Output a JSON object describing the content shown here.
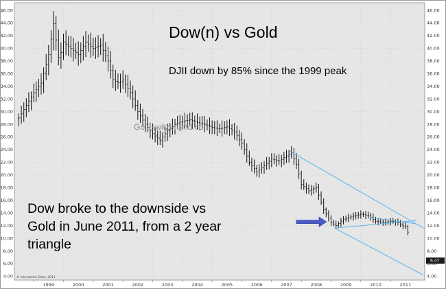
{
  "chart_data": {
    "type": "bar",
    "subtype": "ohlc-monthly",
    "title": "Dow(n) vs Gold",
    "subtitle": "DJII down by 85% since the 1999 peak",
    "watermark": "Goldswitzerland.com",
    "credit": "© Interactive Data, 2011",
    "annotation": [
      "Dow broke to the downside vs",
      "Gold in June 2011, from a 2 year",
      "triangle"
    ],
    "last_value_label": "6.47",
    "last_value": 6.47,
    "x_tick_labels": [
      "1999",
      "2000",
      "2001",
      "2002",
      "2003",
      "2004",
      "2005",
      "2006",
      "2007",
      "2008",
      "2009",
      "2010",
      "2011"
    ],
    "y_tick_values": [
      4,
      6,
      8,
      10,
      12,
      14,
      16,
      18,
      20,
      22,
      24,
      26,
      28,
      30,
      32,
      34,
      36,
      38,
      40,
      42,
      44,
      46
    ],
    "y_tick_labels": [
      "4.00",
      "6.00",
      "8.00",
      "10.00",
      "12.00",
      "14.00",
      "16.00",
      "18.00",
      "20.00",
      "22.00",
      "24.00",
      "26.00",
      "28.00",
      "30.00",
      "32.00",
      "34.00",
      "36.00",
      "38.00",
      "40.00",
      "42.00",
      "44.00",
      "46.00"
    ],
    "xlim": [
      1998.35,
      2012.15
    ],
    "ylim": [
      3.4,
      47.2
    ],
    "grid": true,
    "series": [
      {
        "anchors": [
          [
            1998.5,
            29.0
          ],
          [
            1998.75,
            31.0
          ],
          [
            1999.0,
            33.0
          ],
          [
            1999.25,
            34.5
          ],
          [
            1999.5,
            39.0
          ],
          [
            1999.67,
            44.0
          ],
          [
            1999.85,
            38.0
          ],
          [
            2000.0,
            41.0
          ],
          [
            2000.25,
            40.0
          ],
          [
            2000.5,
            39.0
          ],
          [
            2000.75,
            41.0
          ],
          [
            2001.0,
            40.0
          ],
          [
            2001.25,
            40.5
          ],
          [
            2001.5,
            38.0
          ],
          [
            2001.67,
            35.0
          ],
          [
            2001.85,
            34.5
          ],
          [
            2002.0,
            35.0
          ],
          [
            2002.25,
            33.0
          ],
          [
            2002.5,
            30.0
          ],
          [
            2002.75,
            28.0
          ],
          [
            2003.0,
            26.5
          ],
          [
            2003.25,
            25.5
          ],
          [
            2003.5,
            27.0
          ],
          [
            2003.75,
            28.0
          ],
          [
            2004.0,
            28.5
          ],
          [
            2004.25,
            28.7
          ],
          [
            2004.5,
            28.3
          ],
          [
            2004.75,
            28.0
          ],
          [
            2005.0,
            27.5
          ],
          [
            2005.25,
            27.3
          ],
          [
            2005.5,
            27.6
          ],
          [
            2005.75,
            26.8
          ],
          [
            2006.0,
            25.0
          ],
          [
            2006.25,
            22.0
          ],
          [
            2006.5,
            20.5
          ],
          [
            2006.75,
            21.5
          ],
          [
            2007.0,
            22.5
          ],
          [
            2007.25,
            22.2
          ],
          [
            2007.5,
            23.0
          ],
          [
            2007.67,
            23.5
          ],
          [
            2007.85,
            21.5
          ],
          [
            2008.0,
            18.5
          ],
          [
            2008.25,
            17.5
          ],
          [
            2008.5,
            18.0
          ],
          [
            2008.75,
            14.5
          ],
          [
            2009.0,
            12.5
          ],
          [
            2009.17,
            12.0
          ],
          [
            2009.4,
            13.0
          ],
          [
            2009.75,
            13.5
          ],
          [
            2010.0,
            13.8
          ],
          [
            2010.25,
            13.6
          ],
          [
            2010.5,
            12.7
          ],
          [
            2010.75,
            12.5
          ],
          [
            2011.0,
            12.7
          ],
          [
            2011.25,
            12.5
          ],
          [
            2011.4,
            12.0
          ],
          [
            2011.5,
            11.8
          ],
          [
            2011.6,
            10.8
          ]
        ]
      }
    ],
    "trendlines": [
      {
        "from": [
          2007.6,
          23.8
        ],
        "to": [
          2012.15,
          11.5
        ]
      },
      {
        "from": [
          2009.12,
          11.6
        ],
        "to": [
          2011.85,
          12.8
        ]
      },
      {
        "from": [
          2009.12,
          11.6
        ],
        "to": [
          2012.1,
          4.2
        ]
      },
      {
        "from": [
          2010.3,
          13.3
        ],
        "to": [
          2011.85,
          12.3
        ]
      }
    ],
    "arrow": {
      "from": [
        2007.83,
        12.6
      ],
      "to": [
        2008.85,
        12.6
      ],
      "color": "#4a5bc8"
    },
    "colors": {
      "background": "#e6e6e6",
      "bars": "#111111",
      "trendlines": "#5ab4ea",
      "grid": "#c8c8c8",
      "last_label_bg": "#1a1a1a"
    }
  }
}
